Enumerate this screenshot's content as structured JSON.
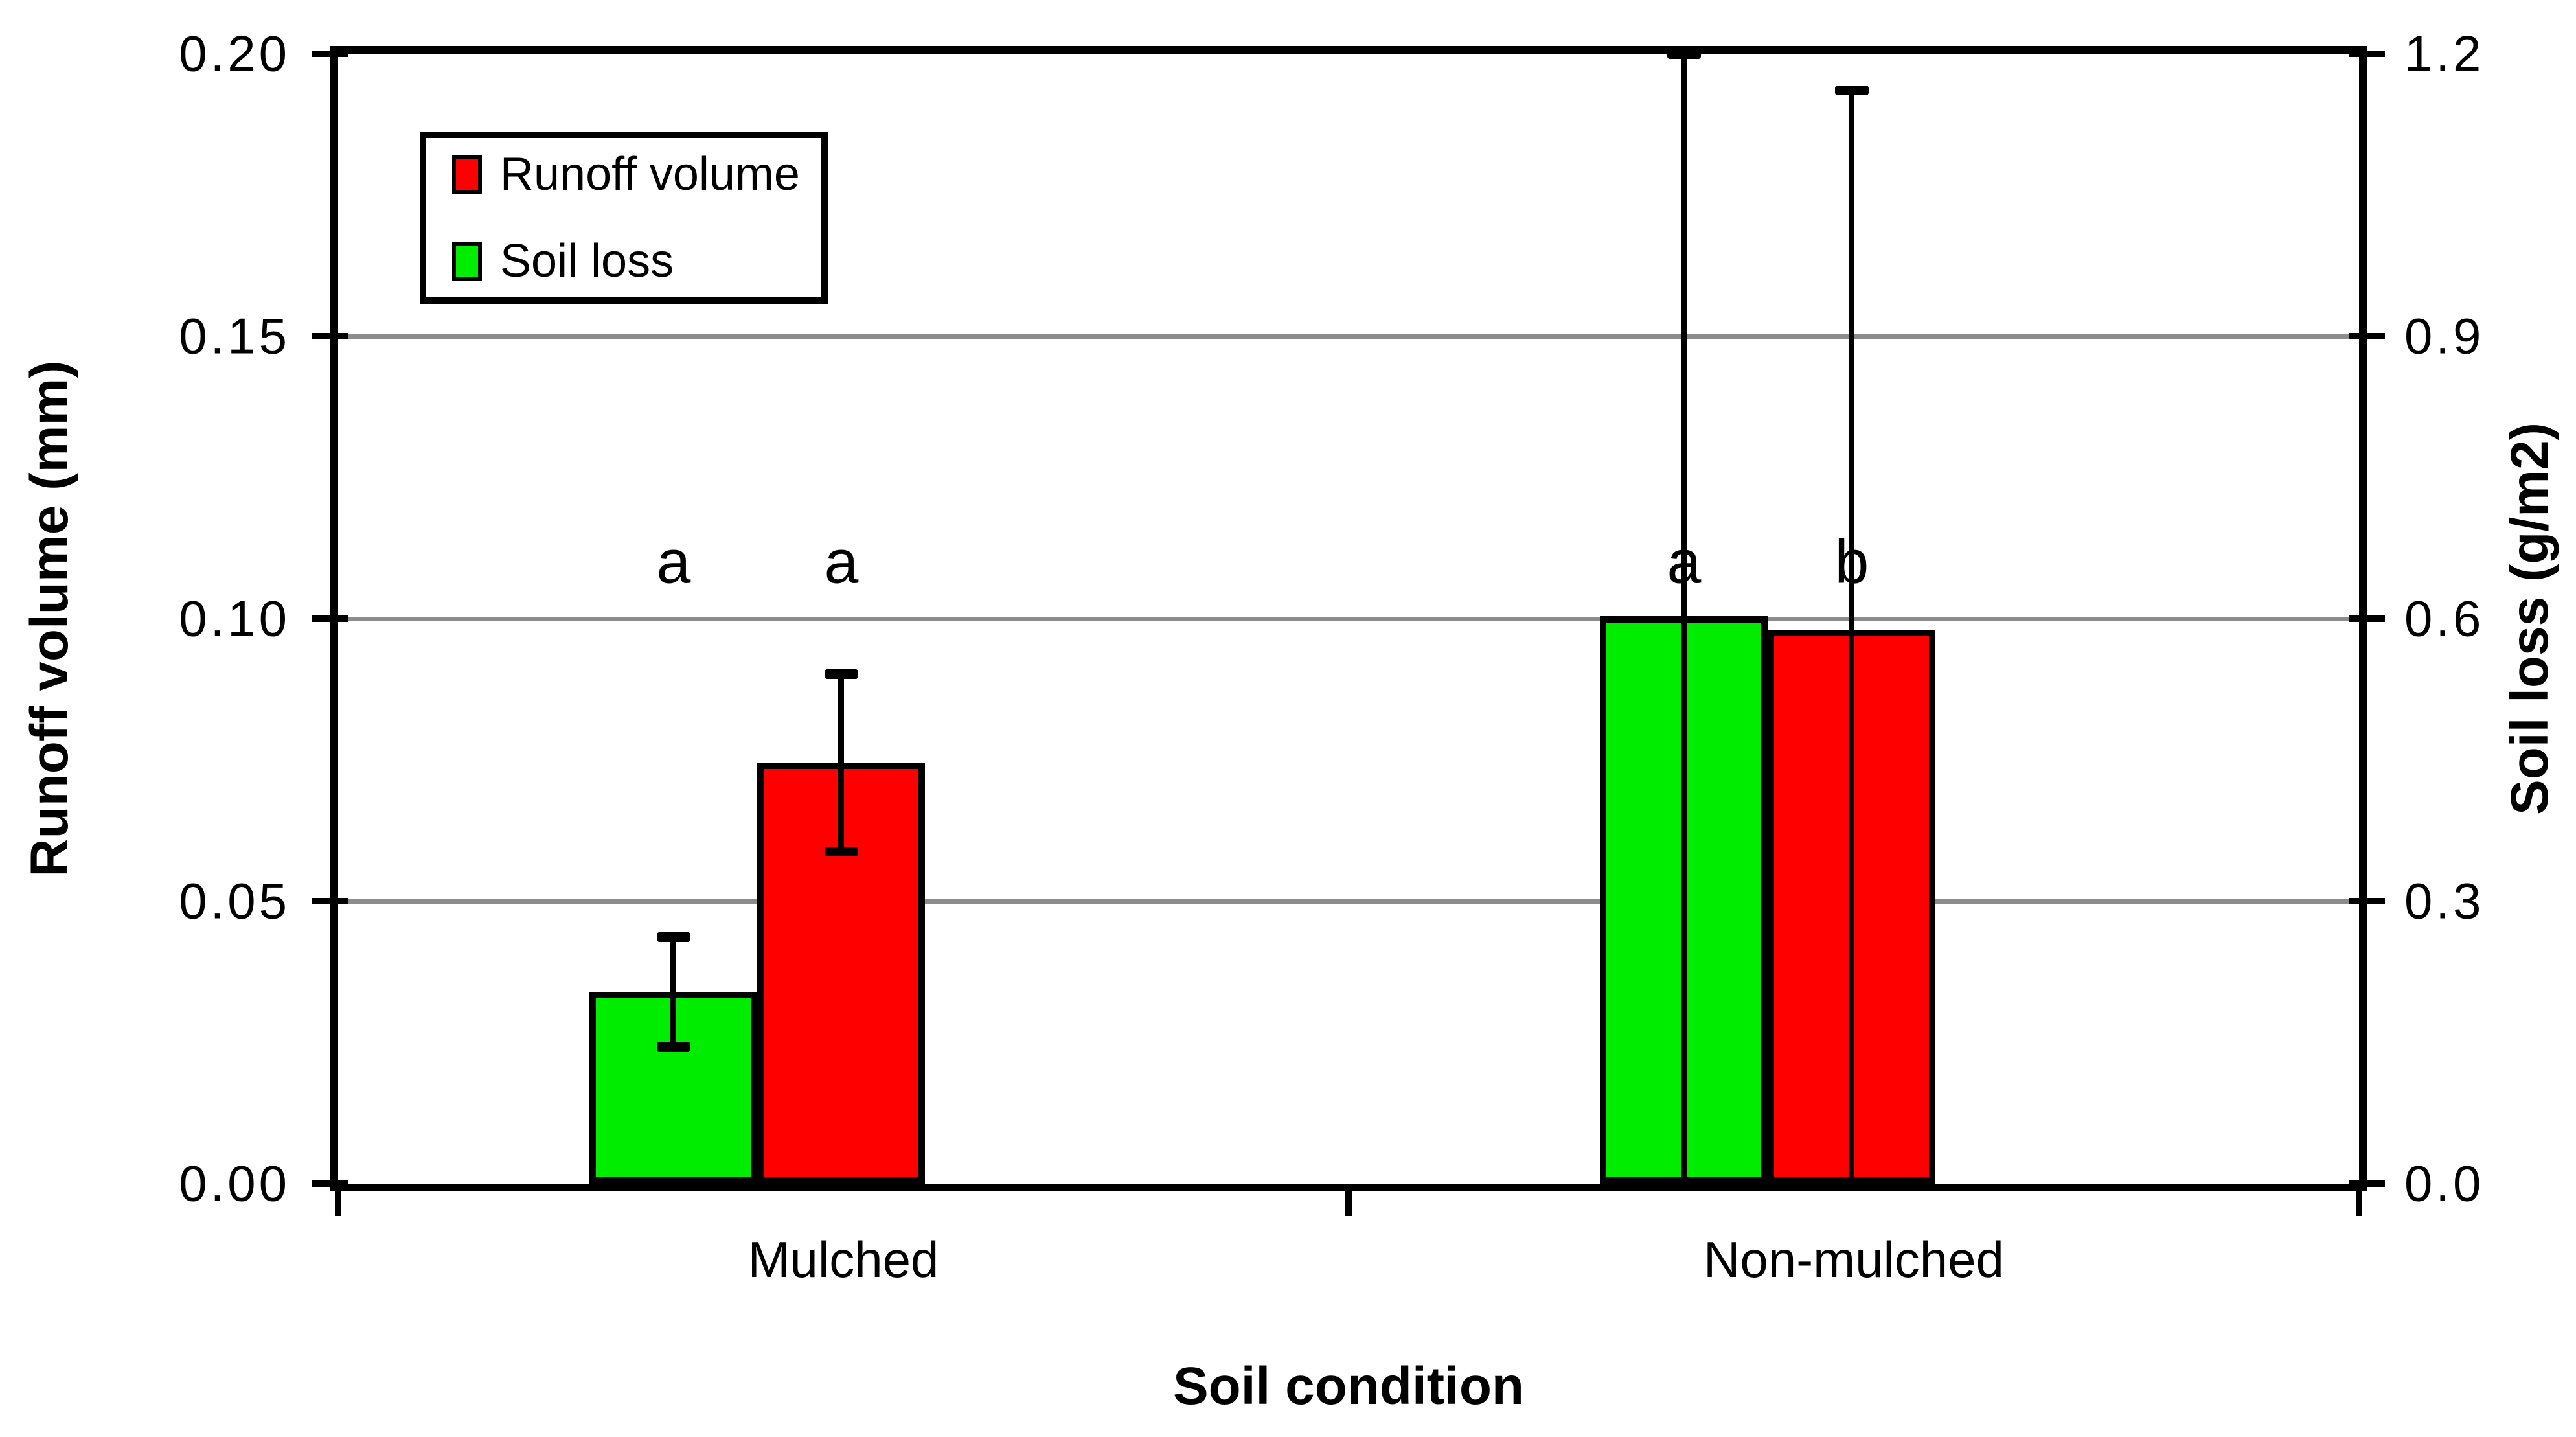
{
  "chart_data": {
    "type": "bar",
    "title": "",
    "xlabel": "Soil condition",
    "ylabel_left": "Runoff volume (mm)",
    "ylabel_right": "Soil loss (g/m2)",
    "categories": [
      "Mulched",
      "Non-mulched"
    ],
    "axis_left": {
      "ticks": [
        "0.20",
        "0.15",
        "0.10",
        "0.05",
        "0.00"
      ],
      "min": 0,
      "max": 0.2
    },
    "axis_right": {
      "ticks": [
        "1.2",
        "0.9",
        "0.6",
        "0.3",
        "0.0"
      ],
      "min": 0,
      "max": 1.2
    },
    "grid": true,
    "gridline_color": "#8c8c8c",
    "legend_position": "top-left-inside",
    "series": [
      {
        "name": "Soil loss",
        "axis": "right",
        "color": "#00ed00",
        "values": [
          0.204,
          0.603
        ],
        "err_plus": [
          0.058,
          0.597
        ],
        "err_minus": [
          0.058,
          0.603
        ],
        "letters": [
          "a",
          "a"
        ]
      },
      {
        "name": "Runoff volume",
        "axis": "left",
        "color": "#ff0000",
        "values": [
          0.0745,
          0.098
        ],
        "err_plus": [
          0.0157,
          0.0956
        ],
        "err_minus": [
          0.0157,
          0.098
        ],
        "letters": [
          "a",
          "b"
        ]
      }
    ],
    "legend": [
      {
        "label": "Runoff volume",
        "color": "#ff0000"
      },
      {
        "label": "Soil loss",
        "color": "#00ed00"
      }
    ],
    "significance_letter_y_left_units": 0.11
  }
}
